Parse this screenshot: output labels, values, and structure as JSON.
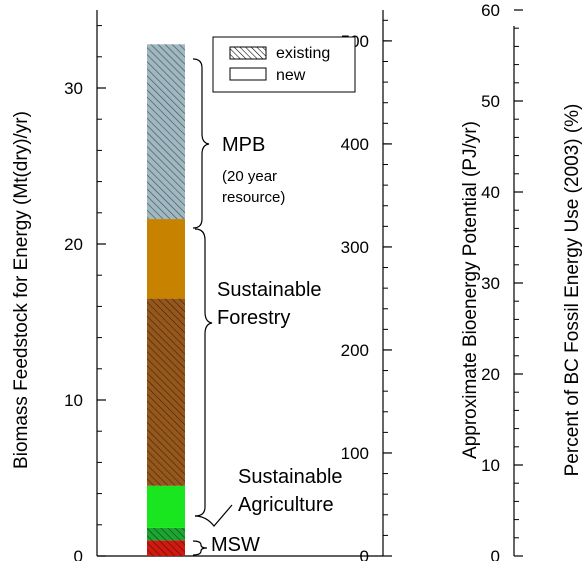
{
  "chart_data": {
    "type": "bar",
    "stacked": true,
    "legend": {
      "placement": "top-center",
      "entries": [
        {
          "label": "existing",
          "pattern": "hatched"
        },
        {
          "label": "new",
          "pattern": "solid"
        }
      ]
    },
    "axes": {
      "left": {
        "label": "Biomass Feedstock for Energy  (Mt(dry)/yr)",
        "ylim": [
          0,
          35
        ],
        "ticks": [
          "0",
          "10",
          "20",
          "30"
        ]
      },
      "middle": {
        "label": "Approximate Bioenergy Potential  (PJ/yr)",
        "ylim": [
          0,
          530
        ],
        "ticks": [
          "0",
          "100",
          "200",
          "300",
          "400",
          "500"
        ]
      },
      "right": {
        "label": "Percent of BC Fossil Energy Use (2003)  (%)",
        "ylim": [
          0,
          60
        ],
        "ticks": [
          "0",
          "10",
          "20",
          "30",
          "40",
          "50",
          "60"
        ]
      }
    },
    "segments": [
      {
        "category": "MSW",
        "pattern": "hatched",
        "color": "#d01a10",
        "from": 0,
        "to": 1.0
      },
      {
        "category": "Sustainable Agriculture",
        "pattern": "hatched",
        "color": "#1ca531",
        "from": 1.0,
        "to": 1.8
      },
      {
        "category": "Sustainable Agriculture",
        "pattern": "solid",
        "color": "#1ae61f",
        "from": 1.8,
        "to": 4.5
      },
      {
        "category": "Sustainable Forestry",
        "pattern": "hatched",
        "color": "#96571c",
        "from": 4.5,
        "to": 16.5
      },
      {
        "category": "Sustainable Forestry",
        "pattern": "solid",
        "color": "#c78300",
        "from": 16.5,
        "to": 21.6
      },
      {
        "category": "MPB",
        "pattern": "hatched",
        "color": "#9fb8c1",
        "from": 21.6,
        "to": 32.8
      }
    ],
    "annotations": {
      "mpb": {
        "title": "MPB",
        "sub": [
          "(20 year",
          "resource)"
        ]
      },
      "forestry": [
        "Sustainable",
        "Forestry"
      ],
      "agriculture": [
        "Sustainable",
        "Agriculture"
      ],
      "msw": "MSW"
    }
  }
}
